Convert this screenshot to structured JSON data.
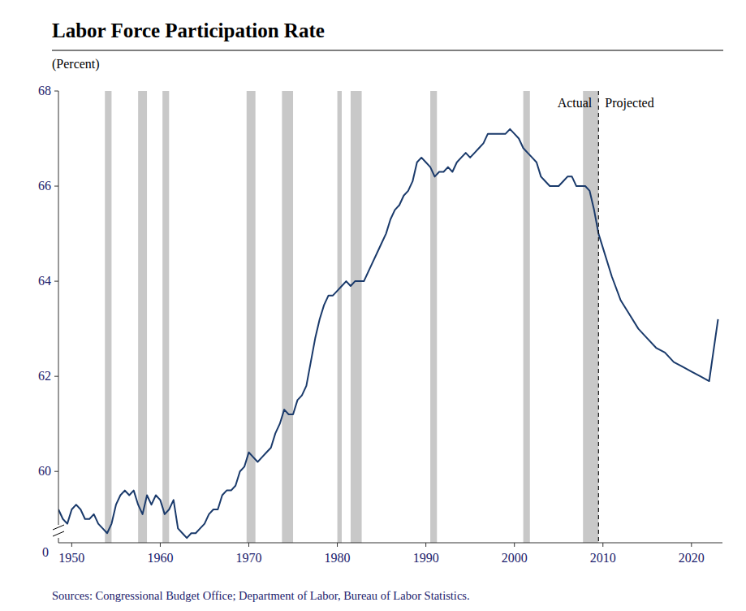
{
  "chart_data": {
    "type": "line",
    "title": "Labor Force Participation Rate",
    "ylabel": "(Percent)",
    "source": "Sources: Congressional Budget Office; Department of Labor, Bureau of Labor Statistics.",
    "axis_break_label": "0",
    "projection_x": 2009.5,
    "recession_color": "#c8c8c8",
    "recession_bands": [
      [
        1953.75,
        1954.5
      ],
      [
        1957.5,
        1958.5
      ],
      [
        1960.25,
        1961.0
      ],
      [
        1969.75,
        1970.75
      ],
      [
        1973.75,
        1975.0
      ],
      [
        1980.0,
        1980.5
      ],
      [
        1981.5,
        1982.75
      ],
      [
        1990.5,
        1991.25
      ],
      [
        2001.0,
        2001.75
      ],
      [
        2007.75,
        2009.5
      ]
    ],
    "xlim": [
      1948.5,
      2023.5
    ],
    "ylim": [
      58.5,
      68.0
    ],
    "yticks": [
      60,
      62,
      64,
      66,
      68
    ],
    "xticks": [
      1950,
      1960,
      1970,
      1980,
      1990,
      2000,
      2010,
      2020
    ],
    "grid": false,
    "series": [
      {
        "name": "Actual",
        "color": "#1a3a6b",
        "x": [
          1948.5,
          1949,
          1949.5,
          1950,
          1950.5,
          1951,
          1951.5,
          1952,
          1952.5,
          1953,
          1953.5,
          1954,
          1954.5,
          1955,
          1955.5,
          1956,
          1956.5,
          1957,
          1957.5,
          1958,
          1958.5,
          1959,
          1959.5,
          1960,
          1960.5,
          1961,
          1961.5,
          1962,
          1962.5,
          1963,
          1963.5,
          1964,
          1964.5,
          1965,
          1965.5,
          1966,
          1966.5,
          1967,
          1967.5,
          1968,
          1968.5,
          1969,
          1969.5,
          1970,
          1970.5,
          1971,
          1971.5,
          1972,
          1972.5,
          1973,
          1973.5,
          1974,
          1974.5,
          1975,
          1975.5,
          1976,
          1976.5,
          1977,
          1977.5,
          1978,
          1978.5,
          1979,
          1979.5,
          1980,
          1980.5,
          1981,
          1981.5,
          1982,
          1982.5,
          1983,
          1983.5,
          1984,
          1984.5,
          1985,
          1985.5,
          1986,
          1986.5,
          1987,
          1987.5,
          1988,
          1988.5,
          1989,
          1989.5,
          1990,
          1990.5,
          1991,
          1991.5,
          1992,
          1992.5,
          1993,
          1993.5,
          1994,
          1994.5,
          1995,
          1995.5,
          1996,
          1996.5,
          1997,
          1997.5,
          1998,
          1998.5,
          1999,
          1999.5,
          2000,
          2000.5,
          2001,
          2001.5,
          2002,
          2002.5,
          2003,
          2003.5,
          2004,
          2004.5,
          2005,
          2005.5,
          2006,
          2006.5,
          2007,
          2007.5,
          2008,
          2008.5,
          2009,
          2009.5
        ],
        "values": [
          59.2,
          59.0,
          58.9,
          59.2,
          59.3,
          59.2,
          59.0,
          59.0,
          59.1,
          58.9,
          58.8,
          58.7,
          58.9,
          59.3,
          59.5,
          59.6,
          59.5,
          59.6,
          59.3,
          59.1,
          59.5,
          59.3,
          59.5,
          59.4,
          59.1,
          59.2,
          59.4,
          58.8,
          58.7,
          58.6,
          58.7,
          58.7,
          58.8,
          58.9,
          59.1,
          59.2,
          59.2,
          59.5,
          59.6,
          59.6,
          59.7,
          60.0,
          60.1,
          60.4,
          60.3,
          60.2,
          60.3,
          60.4,
          60.5,
          60.8,
          61.0,
          61.3,
          61.2,
          61.2,
          61.5,
          61.6,
          61.8,
          62.3,
          62.8,
          63.2,
          63.5,
          63.7,
          63.7,
          63.8,
          63.9,
          64.0,
          63.9,
          64.0,
          64.0,
          64.0,
          64.2,
          64.4,
          64.6,
          64.8,
          65.0,
          65.3,
          65.5,
          65.6,
          65.8,
          65.9,
          66.1,
          66.5,
          66.6,
          66.5,
          66.4,
          66.2,
          66.3,
          66.3,
          66.4,
          66.3,
          66.5,
          66.6,
          66.7,
          66.6,
          66.7,
          66.8,
          66.9,
          67.1,
          67.1,
          67.1,
          67.1,
          67.1,
          67.2,
          67.1,
          67.0,
          66.8,
          66.7,
          66.6,
          66.5,
          66.2,
          66.1,
          66.0,
          66.0,
          66.0,
          66.1,
          66.2,
          66.2,
          66.0,
          66.0,
          66.0,
          65.9,
          65.5,
          65.0
        ]
      },
      {
        "name": "Projected",
        "color": "#1a3a6b",
        "x": [
          2009.5,
          2010,
          2011,
          2012,
          2013,
          2014,
          2015,
          2016,
          2017,
          2018,
          2019,
          2020,
          2021,
          2022,
          2023
        ],
        "values": [
          65.0,
          64.7,
          64.1,
          63.6,
          63.3,
          63.0,
          62.8,
          62.6,
          62.5,
          62.3,
          62.2,
          62.1,
          62.0,
          61.9,
          63.2
        ]
      }
    ]
  }
}
